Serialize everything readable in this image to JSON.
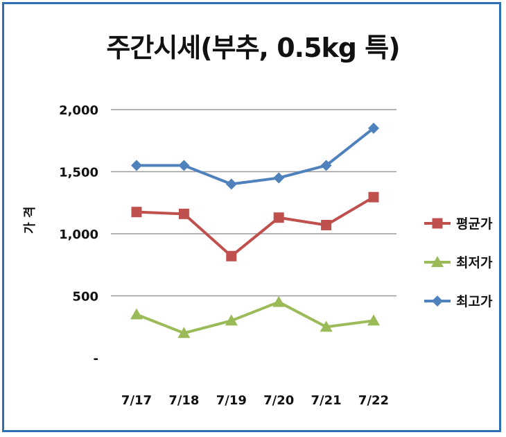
{
  "chart_data": {
    "type": "line",
    "title": "주간시세(부추, 0.5kg 특)",
    "xlabel": "",
    "ylabel": "가 격",
    "categories": [
      "7/17",
      "7/18",
      "7/19",
      "7/20",
      "7/21",
      "7/22"
    ],
    "ylim": [
      0,
      2000
    ],
    "yticks": [
      0,
      500,
      1000,
      1500,
      2000
    ],
    "ytick_labels": [
      "-",
      "500",
      "1,000",
      "1,500",
      "2,000"
    ],
    "grid": true,
    "legend_position": "right",
    "series": [
      {
        "name": "평균가",
        "values": [
          1175,
          1160,
          820,
          1130,
          1070,
          1295
        ],
        "color": "#c0504d",
        "marker": "square"
      },
      {
        "name": "최저가",
        "values": [
          350,
          200,
          300,
          450,
          250,
          300
        ],
        "color": "#9bbb59",
        "marker": "triangle"
      },
      {
        "name": "최고가",
        "values": [
          1550,
          1550,
          1400,
          1450,
          1550,
          1850
        ],
        "color": "#4f81bd",
        "marker": "diamond"
      }
    ]
  }
}
